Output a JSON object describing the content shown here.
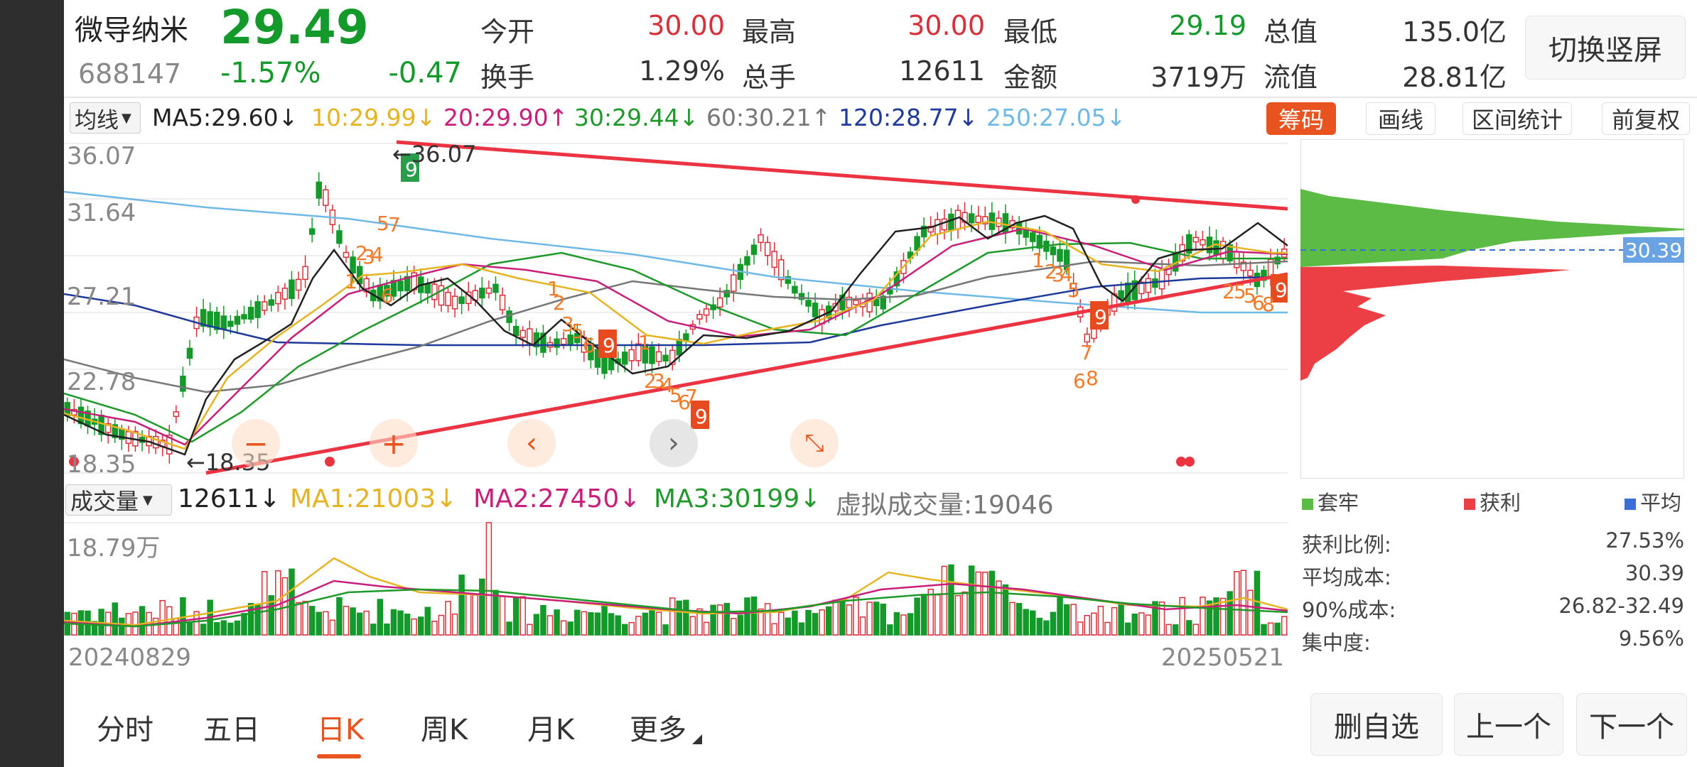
{
  "quote": {
    "name": "微导纳米",
    "code": "688147",
    "price": "29.49",
    "change_pct": "-1.57%",
    "change": "-0.47",
    "open_label": "今开",
    "open": "30.00",
    "high_label": "最高",
    "high": "30.00",
    "low_label": "最低",
    "low": "29.19",
    "mktcap_label": "总值",
    "mktcap": "135.0亿",
    "turnover_label": "换手",
    "turnover": "1.29%",
    "volume_label": "总手",
    "volume": "12611",
    "amount_label": "金额",
    "amount": "3719万",
    "float_label": "流值",
    "float_cap": "28.81亿"
  },
  "switch_button": "切换竖屏",
  "ma_bar": {
    "selector": "均线",
    "ma5": "MA5:29.60↓",
    "ma10": "10:29.99↓",
    "ma20": "20:29.90↑",
    "ma30": "30:29.44↓",
    "ma60": "60:30.21↑",
    "ma120": "120:28.77↓",
    "ma250": "250:27.05↓",
    "colors": {
      "ma5": "#222222",
      "ma10": "#e6b422",
      "ma20": "#c8207a",
      "ma30": "#1f9a2a",
      "ma60": "#777777",
      "ma120": "#1f3a9a",
      "ma250": "#6fb9e6"
    }
  },
  "tools": {
    "chips": "筹码",
    "draw": "画线",
    "range": "区间统计",
    "adjust": "前复权"
  },
  "price_axis": [
    "36.07",
    "31.64",
    "27.21",
    "22.78",
    "18.35"
  ],
  "annotations": {
    "high": "←36.07",
    "low": "←18.35",
    "chip_price": "30.39"
  },
  "volume_bar": {
    "selector": "成交量",
    "vol": "12611↓",
    "ma1": "MA1:21003↓",
    "ma2": "MA2:27450↓",
    "ma3": "MA3:30199↓",
    "virtual": "虚拟成交量:19046",
    "max_label": "18.79万"
  },
  "dates": {
    "start": "20240829",
    "end": "20250521"
  },
  "chip_legend": {
    "trapped": "套牢",
    "profit": "获利",
    "avg": "平均"
  },
  "chip_stats": [
    {
      "label": "获利比例:",
      "value": "27.53%"
    },
    {
      "label": "平均成本:",
      "value": "30.39"
    },
    {
      "label": "90%成本:",
      "value": "26.82-32.49"
    },
    {
      "label": "集中度:",
      "value": "9.56%"
    }
  ],
  "tabs": [
    "分时",
    "五日",
    "日K",
    "周K",
    "月K",
    "更多"
  ],
  "actions": {
    "remove": "删自选",
    "prev": "上一个",
    "next": "下一个"
  },
  "nav_controls": [
    "zoom-out",
    "zoom-in",
    "scroll-left",
    "scroll-right",
    "reset"
  ],
  "colors": {
    "up": "#d7303a",
    "down": "#149a2a",
    "accent": "#e8531f"
  }
}
